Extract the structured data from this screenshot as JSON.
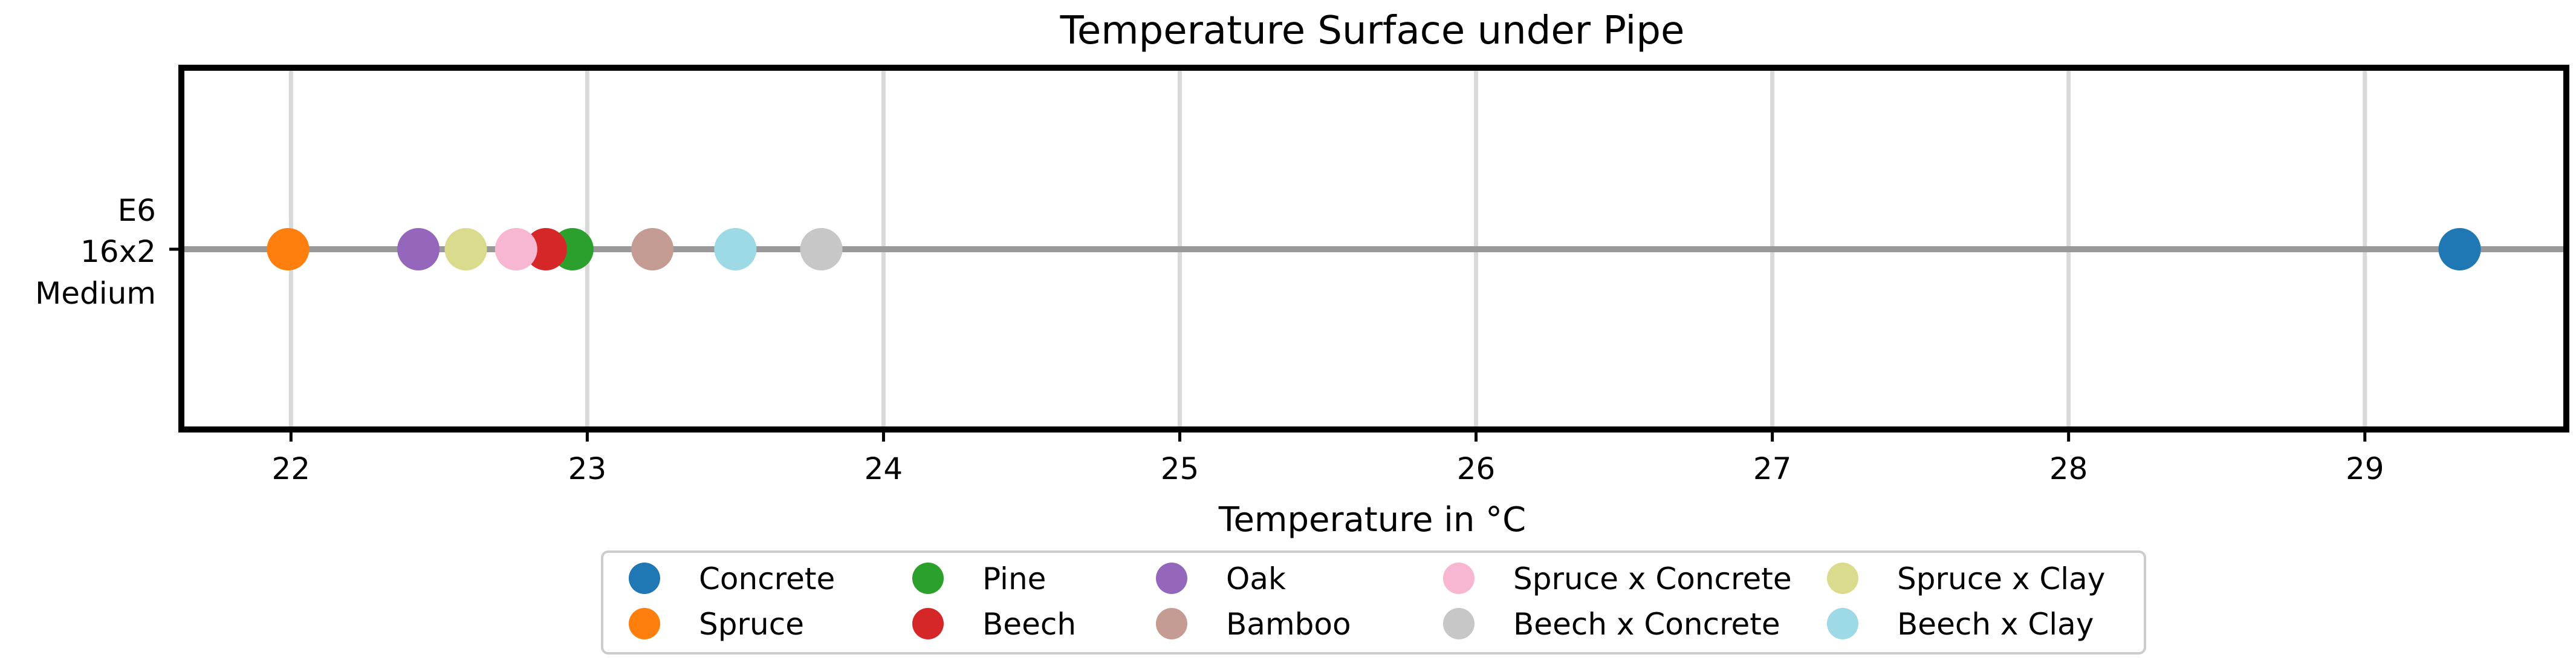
{
  "chart_data": {
    "type": "scatter",
    "title": "Temperature Surface under Pipe",
    "xlabel": "Temperature in °C",
    "ylabel": "",
    "xlim": [
      21.63,
      29.68
    ],
    "xticks": [
      22,
      23,
      24,
      25,
      26,
      27,
      28,
      29
    ],
    "category_label_lines": [
      "E6",
      "16x2",
      "Medium"
    ],
    "grid": "x",
    "legend_position": "bottom-center",
    "series": [
      {
        "name": "Concrete",
        "color": "#1f77b4",
        "x": 29.32
      },
      {
        "name": "Spruce",
        "color": "#ff7f0e",
        "x": 21.99
      },
      {
        "name": "Pine",
        "color": "#2ca02c",
        "x": 22.95
      },
      {
        "name": "Beech",
        "color": "#d62728",
        "x": 22.86
      },
      {
        "name": "Oak",
        "color": "#9467bd",
        "x": 22.43
      },
      {
        "name": "Bamboo",
        "color": "#c49c94",
        "x": 23.22
      },
      {
        "name": "Spruce x Concrete",
        "color": "#f7b6d2",
        "x": 22.76
      },
      {
        "name": "Beech x Concrete",
        "color": "#c7c7c7",
        "x": 23.79
      },
      {
        "name": "Spruce x Clay",
        "color": "#dbdb8d",
        "x": 22.59
      },
      {
        "name": "Beech x Clay",
        "color": "#9edae5",
        "x": 23.5
      }
    ]
  }
}
